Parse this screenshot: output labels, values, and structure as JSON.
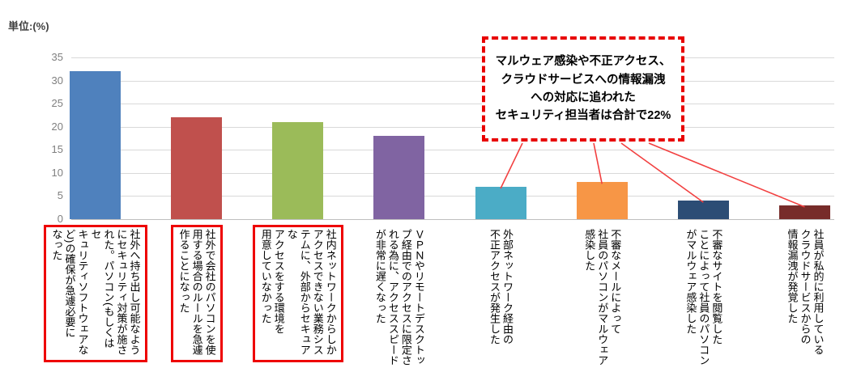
{
  "unit_label": "単位:(%)",
  "chart_data": {
    "type": "bar",
    "title": "",
    "ylabel": "単位:(%)",
    "xlabel": "",
    "ylim": [
      0,
      35
    ],
    "yticks": [
      0,
      5,
      10,
      15,
      20,
      25,
      30,
      35
    ],
    "grid": true,
    "legend": false,
    "categories": [
      "社外へ持ち出し可能なよう\nにセキュリティ対策が施さ\nれた。パソコン(もしくはセ\nキュリティソフトウェアな\nど)の確保が急遽必要に\nなった",
      "社外で会社のパソコンを使\n用する場合のルールを急遽\n作ることになった",
      "社内ネットワークからしか\nアクセスできない業務シス\nテムに、外部からセキュアな\nアクセスをする環境を\n用意していなかった",
      "ＶＰＮやリモートデスクトッ\nプ経由でのアクセスに限定さ\nれる為に、アクセススピード\nが非常に遅くなった",
      "外部ネットワーク経由の\n不正アクセスが発生した",
      "不審なメールによって\n社員のパソコンがマルウェア\n感染した",
      "不審なサイトを閲覧した\nことによって社員のパソコン\nがマルウェア感染した",
      "社員が私的に利用している\nクラウドサービスからの\n情報漏洩が発覚した"
    ],
    "values": [
      32,
      22,
      21,
      18,
      7,
      8,
      4,
      3
    ],
    "bar_colors": [
      "#4F81BD",
      "#C0504D",
      "#9BBB59",
      "#8064A2",
      "#4BACC6",
      "#F79646",
      "#2C4D75",
      "#772C2A"
    ],
    "highlighted_with_red_box": [
      true,
      true,
      true,
      false,
      false,
      false,
      false,
      false
    ],
    "connected_to_callout": [
      false,
      false,
      false,
      false,
      true,
      true,
      true,
      true
    ]
  },
  "callout": {
    "text": "マルウェア感染や不正アクセス、\nクラウドサービスへの情報漏洩\nへの対応に追われた\nセキュリティ担当者は合計で22%",
    "border_color": "#E80000",
    "text_color": "#000000"
  },
  "colors": {
    "background": "#FFFFFF",
    "gridline": "#D9D9D9",
    "axis_line": "#BFBFBF",
    "tick_label": "#7F7F7F",
    "unit_label": "#3F3F3F",
    "highlight_box": "#EE0000",
    "connector_line": "#F24040"
  }
}
